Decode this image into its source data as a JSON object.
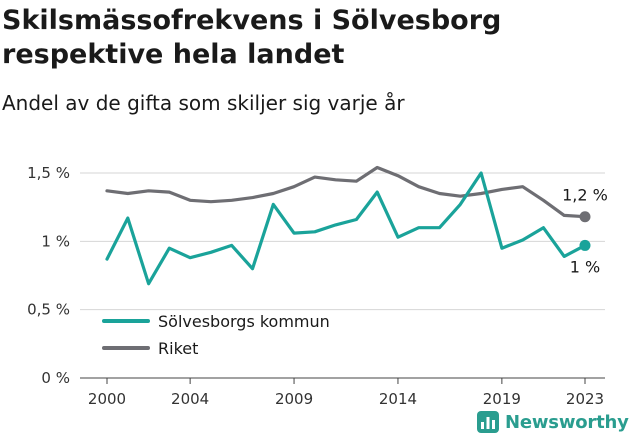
{
  "header": {
    "title": "Skilsmässofrekvens i Sölvesborg respektive hela landet",
    "subtitle": "Andel av de gifta som skiljer sig varje år"
  },
  "brand": {
    "name": "Newsworthy",
    "icon": "bar-chart-logo-icon",
    "color": "#2a9d8f"
  },
  "chart_data": {
    "type": "line",
    "x": [
      2000,
      2001,
      2002,
      2003,
      2004,
      2005,
      2006,
      2007,
      2008,
      2009,
      2010,
      2011,
      2012,
      2013,
      2014,
      2015,
      2016,
      2017,
      2018,
      2019,
      2020,
      2021,
      2022,
      2023
    ],
    "series": [
      {
        "name": "Sölvesborgs kommun",
        "color": "#1aa39a",
        "values": [
          0.87,
          1.17,
          0.69,
          0.95,
          0.88,
          0.92,
          0.97,
          0.8,
          1.27,
          1.06,
          1.07,
          1.12,
          1.16,
          1.36,
          1.03,
          1.1,
          1.1,
          1.27,
          1.5,
          0.95,
          1.01,
          1.1,
          0.89,
          0.97
        ],
        "end_label": "1 %"
      },
      {
        "name": "Riket",
        "color": "#6e6e73",
        "values": [
          1.37,
          1.35,
          1.37,
          1.36,
          1.3,
          1.29,
          1.3,
          1.32,
          1.35,
          1.4,
          1.47,
          1.45,
          1.44,
          1.54,
          1.48,
          1.4,
          1.35,
          1.33,
          1.35,
          1.38,
          1.4,
          1.3,
          1.19,
          1.18
        ],
        "end_label": "1,2 %"
      }
    ],
    "ylim": [
      0,
      1.5
    ],
    "yticks": [
      0,
      0.5,
      1,
      1.5
    ],
    "ytick_labels": [
      "0 %",
      "0,5 %",
      "1 %",
      "1,5 %"
    ],
    "xticks": [
      2000,
      2004,
      2009,
      2014,
      2019,
      2023
    ],
    "xtick_labels": [
      "2000",
      "2004",
      "2009",
      "2014",
      "2019",
      "2023"
    ],
    "grid": true,
    "legend_position": "bottom-left"
  }
}
